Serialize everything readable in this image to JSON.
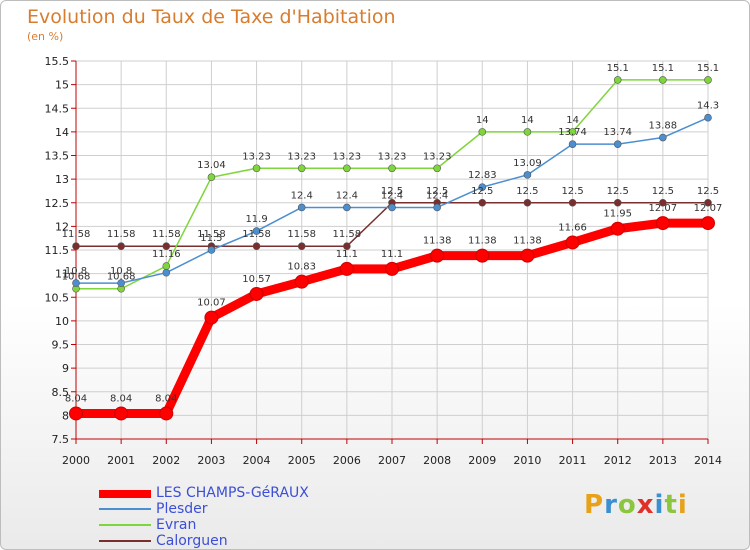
{
  "title": "Evolution du Taux de Taxe d'Habitation",
  "unit": "(en %)",
  "logo_text": "Proxiti",
  "colors": {
    "title": "#d87c2e",
    "grid": "#cfcfcf",
    "axis": "#c00000",
    "legend_text": "#3c4fd6"
  },
  "chart_data": {
    "type": "line",
    "title": "Evolution du Taux de Taxe d'Habitation",
    "ylabel": "(en %)",
    "ylim": [
      7.5,
      15.5
    ],
    "y_ticks": [
      7.5,
      8,
      8.5,
      9,
      9.5,
      10,
      10.5,
      11,
      11.5,
      12,
      12.5,
      13,
      13.5,
      14,
      14.5,
      15,
      15.5
    ],
    "y_tick_labels": [
      "7.5",
      "8",
      "8.5",
      "9",
      "9.5",
      "10",
      "10.5",
      "11",
      "11.5",
      "12",
      "12.5",
      "13",
      "13.5",
      "14",
      "14.5",
      "15",
      "15.5"
    ],
    "x": [
      "2000",
      "2001",
      "2002",
      "2003",
      "2004",
      "2005",
      "2006",
      "2007",
      "2008",
      "2009",
      "2010",
      "2011",
      "2012",
      "2013",
      "2014"
    ],
    "grid": true,
    "legend_position": "bottom-left",
    "series": [
      {
        "name": "Calorguen",
        "color": "#7a2e2e",
        "values": [
          11.58,
          11.58,
          11.58,
          11.58,
          11.58,
          11.58,
          11.58,
          12.5,
          12.5,
          12.5,
          12.5,
          12.5,
          12.5,
          12.5,
          12.5
        ],
        "labels": [
          "11.58",
          "11.58",
          "11.58",
          "11.58",
          "11.58",
          "11.58",
          "11.58",
          "12.5",
          "12.5",
          "12.5",
          "12.5",
          "12.5",
          "12.5",
          "12.5",
          "12.5"
        ]
      },
      {
        "name": "Evran",
        "color": "#7fd63c",
        "values": [
          10.68,
          10.68,
          11.16,
          13.04,
          13.23,
          13.23,
          13.23,
          13.23,
          13.23,
          14,
          14,
          14,
          15.1,
          15.1,
          15.1
        ],
        "labels": [
          "10.68",
          "10.68",
          "11.16",
          "13.04",
          "13.23",
          "13.23",
          "13.23",
          "13.23",
          "13.23",
          "14",
          "14",
          "14",
          "15.1",
          "15.1",
          "15.1"
        ]
      },
      {
        "name": "Plesder",
        "color": "#4b8fd1",
        "values": [
          10.8,
          10.8,
          11.02,
          11.5,
          11.9,
          12.4,
          12.4,
          12.4,
          12.4,
          12.83,
          13.09,
          13.74,
          13.74,
          13.88,
          14.3
        ],
        "labels": [
          "10.8",
          "10.8",
          "",
          "11.5",
          "11.9",
          "12.4",
          "12.4",
          "12.4",
          "12.4",
          "12.83",
          "13.09",
          "13.74",
          "13.74",
          "13.88",
          "14.3"
        ]
      },
      {
        "name": "LES CHAMPS-GéRAUX",
        "color": "#ff0000",
        "values": [
          8.04,
          8.04,
          8.04,
          10.07,
          10.57,
          10.83,
          11.1,
          11.1,
          11.38,
          11.38,
          11.38,
          11.66,
          11.95,
          12.07,
          12.07
        ],
        "labels": [
          "8.04",
          "8.04",
          "8.04",
          "10.07",
          "10.57",
          "10.83",
          "11.1",
          "11.1",
          "11.38",
          "11.38",
          "11.38",
          "11.66",
          "11.95",
          "12.07",
          "12.07"
        ]
      }
    ]
  },
  "legend": [
    {
      "label": "LES CHAMPS-GéRAUX",
      "color": "#ff0000"
    },
    {
      "label": "Plesder",
      "color": "#4b8fd1"
    },
    {
      "label": "Evran",
      "color": "#7fd63c"
    },
    {
      "label": "Calorguen",
      "color": "#7a2e2e"
    }
  ]
}
